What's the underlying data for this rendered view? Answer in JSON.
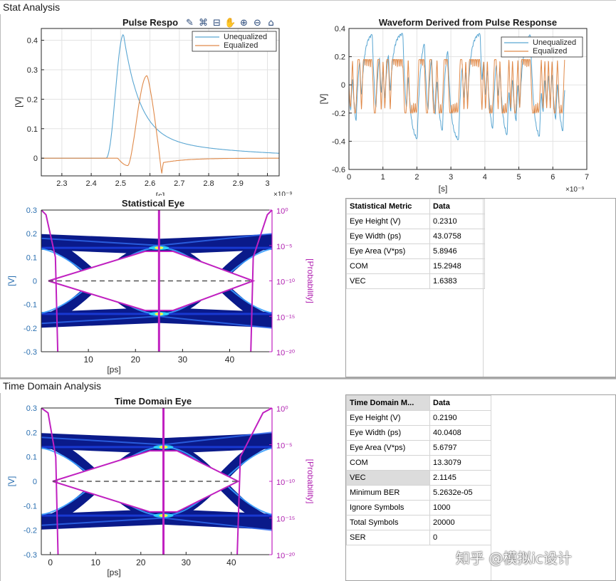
{
  "sections": {
    "stat": "Stat Analysis",
    "time": "Time Domain Analysis"
  },
  "toolbar_icons": [
    "brush-icon",
    "paint-icon",
    "data-tip-icon",
    "pan-icon",
    "zoom-in-icon",
    "zoom-out-icon",
    "home-icon"
  ],
  "toolbar_glyphs": [
    "✎",
    "⌘",
    "⊟",
    "✋",
    "⊕",
    "⊖",
    "⌂"
  ],
  "pulse": {
    "title": "Pulse Response",
    "title_visible": "Pulse Respo",
    "xlabel": "[s]",
    "ylabel": "[V]",
    "xexp": "×10⁻⁹",
    "xlim": [
      2.23,
      3.04
    ],
    "ylim": [
      -0.06,
      0.44
    ],
    "xticks": [
      "2.3",
      "2.4",
      "2.5",
      "2.6",
      "2.7",
      "2.8",
      "2.9",
      "3"
    ],
    "yticks": [
      "0",
      "0.1",
      "0.2",
      "0.3",
      "0.4"
    ],
    "legend": [
      "Unequalized",
      "Equalized"
    ],
    "colors": {
      "unequalized": "#5aa6d2",
      "equalized": "#e08a4a"
    }
  },
  "waveform": {
    "title": "Waveform Derived from Pulse Response",
    "xlabel": "[s]",
    "ylabel": "[V]",
    "xexp": "×10⁻⁹",
    "xlim": [
      0,
      7
    ],
    "ylim": [
      -0.6,
      0.4
    ],
    "xticks": [
      "0",
      "1",
      "2",
      "3",
      "4",
      "5",
      "6",
      "7"
    ],
    "yticks": [
      "-0.6",
      "-0.4",
      "-0.2",
      "0",
      "0.2",
      "0.4"
    ],
    "legend": [
      "Unequalized",
      "Equalized"
    ]
  },
  "stat_eye": {
    "title": "Statistical Eye",
    "xlabel": "[ps]",
    "ylabel": "[V]",
    "y2label": "[Probability]",
    "xticks": [
      "10",
      "20",
      "30",
      "40"
    ],
    "yticks": [
      "0.3",
      "0.2",
      "0.1",
      "0",
      "-0.1",
      "-0.2",
      "-0.3"
    ],
    "y2ticks": [
      "10⁰",
      "10⁻⁵",
      "10⁻¹⁰",
      "10⁻¹⁵",
      "10⁻²⁰"
    ]
  },
  "td_eye": {
    "title": "Time Domain Eye",
    "xlabel": "[ps]",
    "ylabel": "[V]",
    "y2label": "[Probability]",
    "xticks": [
      "0",
      "10",
      "20",
      "30",
      "40"
    ],
    "yticks": [
      "0.3",
      "0.2",
      "0.1",
      "0",
      "-0.1",
      "-0.2",
      "-0.3"
    ],
    "y2ticks": [
      "10⁰",
      "10⁻⁵",
      "10⁻¹⁰",
      "10⁻¹⁵",
      "10⁻²⁰"
    ]
  },
  "stat_table": {
    "headers": [
      "Statistical Metric",
      "Data"
    ],
    "rows": [
      [
        "Eye Height (V)",
        "0.2310"
      ],
      [
        "Eye Width (ps)",
        "43.0758"
      ],
      [
        "Eye Area (V*ps)",
        "5.8946"
      ],
      [
        "COM",
        "15.2948"
      ],
      [
        "VEC",
        "1.6383"
      ]
    ]
  },
  "td_table": {
    "headers": [
      "Time Domain M...",
      "Data"
    ],
    "rows": [
      [
        "Eye Height (V)",
        "0.2190"
      ],
      [
        "Eye Width (ps)",
        "40.0408"
      ],
      [
        "Eye Area (V*ps)",
        "5.6797"
      ],
      [
        "COM",
        "13.3079"
      ],
      [
        "VEC",
        "2.1145"
      ],
      [
        "Minimum BER",
        "5.2632e-05"
      ],
      [
        "Ignore Symbols",
        "1000"
      ],
      [
        "Total Symbols",
        "20000"
      ],
      [
        "SER",
        "0"
      ]
    ]
  },
  "watermark": "知乎 @模拟ic设计",
  "chart_data": [
    {
      "type": "line",
      "title": "Pulse Response",
      "xlabel": "[s]",
      "ylabel": "[V]",
      "xlim": [
        2.23,
        3.04
      ],
      "ylim": [
        -0.06,
        0.44
      ],
      "series": [
        {
          "name": "Unequalized",
          "x": [
            2.23,
            2.4,
            2.45,
            2.47,
            2.49,
            2.51,
            2.53,
            2.55,
            2.57,
            2.6,
            2.65,
            2.7,
            2.8,
            2.9,
            3.04
          ],
          "y": [
            0,
            0,
            0.005,
            0.06,
            0.25,
            0.42,
            0.38,
            0.25,
            0.16,
            0.1,
            0.055,
            0.035,
            0.018,
            0.01,
            0.005
          ]
        },
        {
          "name": "Equalized",
          "x": [
            2.23,
            2.45,
            2.49,
            2.51,
            2.52,
            2.53,
            2.55,
            2.57,
            2.59,
            2.61,
            2.63,
            2.635,
            2.645,
            2.66,
            2.7,
            2.8,
            3.04
          ],
          "y": [
            0,
            0,
            -0.005,
            -0.02,
            -0.025,
            -0.01,
            0.12,
            0.24,
            0.28,
            0.2,
            0.0,
            -0.05,
            -0.015,
            -0.01,
            -0.005,
            0,
            0
          ]
        }
      ]
    },
    {
      "type": "line",
      "title": "Waveform Derived from Pulse Response",
      "xlabel": "[s]",
      "ylabel": "[V]",
      "xlim": [
        0,
        7
      ],
      "ylim": [
        -0.6,
        0.4
      ],
      "series": [
        {
          "name": "Unequalized",
          "range_y": [
            -0.42,
            0.38
          ]
        },
        {
          "name": "Equalized",
          "range_y": [
            -0.2,
            0.18
          ]
        }
      ]
    },
    {
      "type": "heatmap",
      "title": "Statistical Eye",
      "xlabel": "[ps]",
      "ylabel": "[V]",
      "xlim": [
        0,
        49
      ],
      "ylim": [
        -0.3,
        0.3
      ]
    },
    {
      "type": "heatmap",
      "title": "Time Domain Eye",
      "xlabel": "[ps]",
      "ylabel": "[V]",
      "xlim": [
        -2,
        49
      ],
      "ylim": [
        -0.3,
        0.3
      ]
    }
  ]
}
